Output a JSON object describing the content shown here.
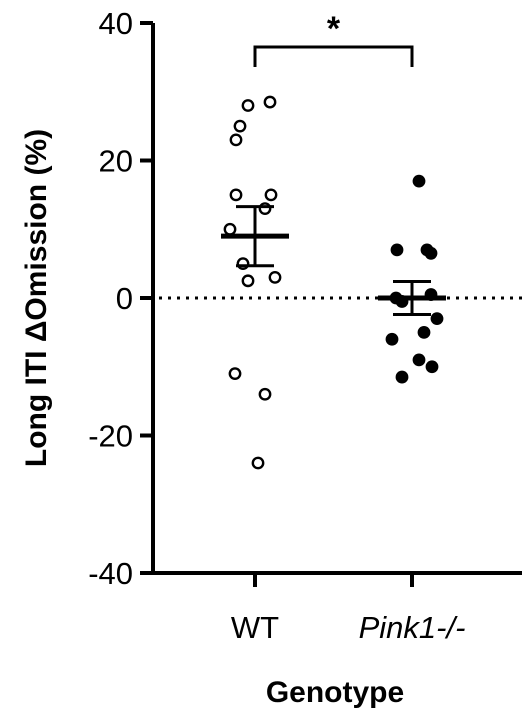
{
  "chart_data": {
    "type": "scatter",
    "title": "",
    "xlabel": "Genotype",
    "ylabel": "Long ITI ΔOmission (%)",
    "ylim": [
      -40,
      40
    ],
    "yticks": [
      -40,
      -20,
      0,
      20,
      40
    ],
    "categories": [
      "WT",
      "Pink1-/-"
    ],
    "series": [
      {
        "category": "WT",
        "marker": "open-circle",
        "values": [
          28,
          28.5,
          25,
          23,
          15,
          15,
          13,
          10,
          5,
          3,
          2.5,
          -11,
          -14,
          -24
        ],
        "mean": 9,
        "sem": 4.3
      },
      {
        "category": "Pink1-/-",
        "marker": "filled-circle",
        "values": [
          17,
          7,
          7,
          6.5,
          0.5,
          0,
          -0.5,
          -3,
          -5,
          -6,
          -9,
          -10,
          -11.5
        ],
        "mean": 0,
        "sem": 2.4
      }
    ],
    "reference_line": {
      "y": 0,
      "style": "dotted"
    },
    "significance": {
      "label": "*",
      "between": [
        "WT",
        "Pink1-/-"
      ]
    },
    "grid": false,
    "legend": "none"
  }
}
